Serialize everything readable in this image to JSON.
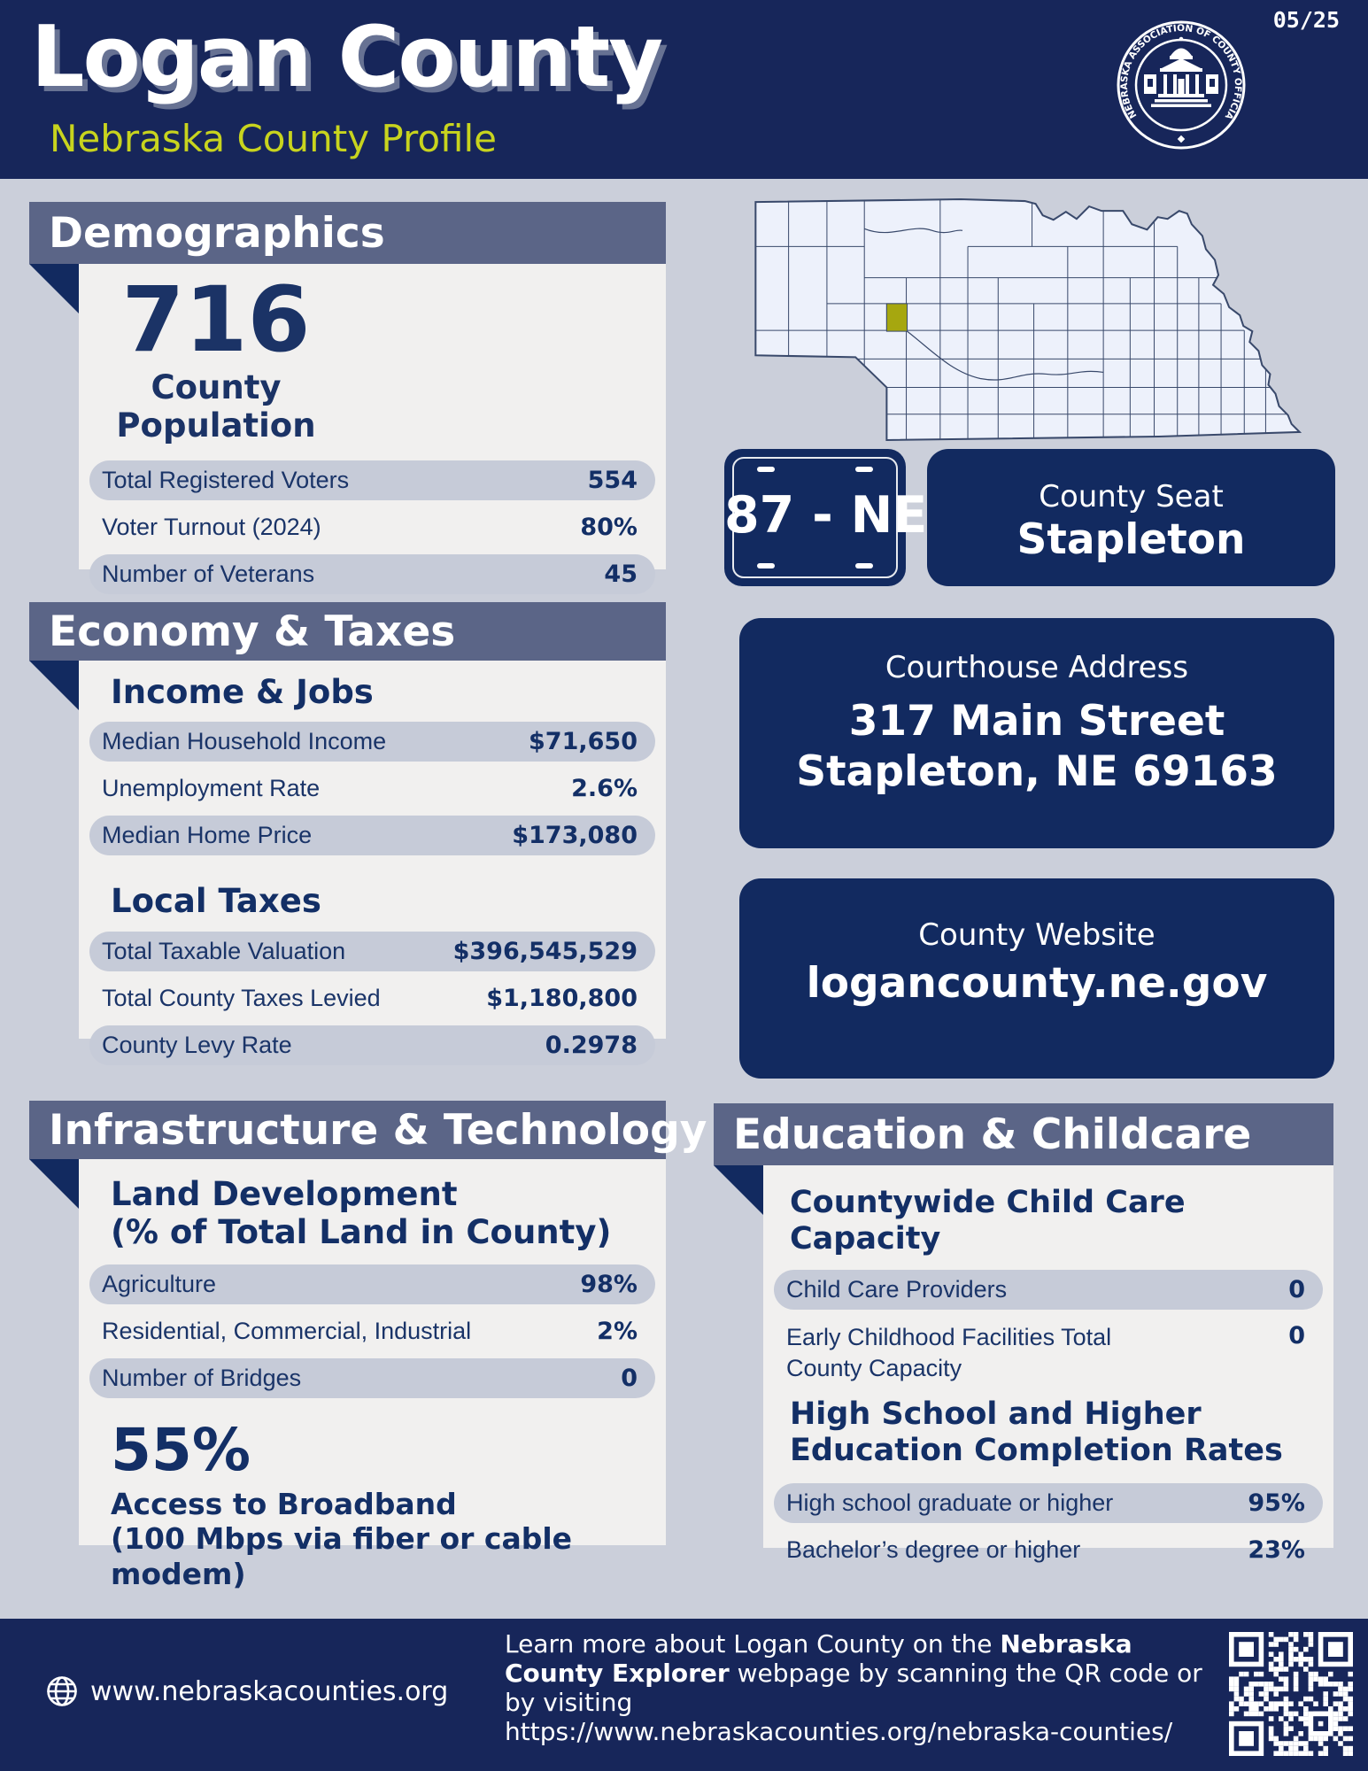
{
  "page": {
    "date": "05/25"
  },
  "header": {
    "title": "Logan County",
    "subtitle": "Nebraska County Profile",
    "seal_text": "NEBRASKA ASSOCIATION OF COUNTY OFFICIALS"
  },
  "map": {
    "highlighted_county": "Logan",
    "highlight_color": "#A6A70F"
  },
  "plate": {
    "number": "87 - NE"
  },
  "county_seat": {
    "label": "County Seat",
    "name": "Stapleton"
  },
  "courthouse": {
    "label": "Courthouse Address",
    "address_line1": "317 Main Street",
    "address_line2": "Stapleton, NE 69163"
  },
  "website": {
    "label": "County Website",
    "url": "logancounty.ne.gov"
  },
  "demographics": {
    "title": "Demographics",
    "population": "716",
    "population_label": "County Population",
    "rows": [
      {
        "label": "Total Registered Voters",
        "value": "554"
      },
      {
        "label": "Voter Turnout (2024)",
        "value": "80%"
      },
      {
        "label": "Number of Veterans",
        "value": "45"
      }
    ]
  },
  "economy": {
    "title": "Economy & Taxes",
    "income_jobs_heading": "Income & Jobs",
    "income_rows": [
      {
        "label": "Median Household Income",
        "value": "$71,650"
      },
      {
        "label": "Unemployment Rate",
        "value": "2.6%"
      },
      {
        "label": "Median Home Price",
        "value": "$173,080"
      }
    ],
    "local_taxes_heading": "Local Taxes",
    "tax_rows": [
      {
        "label": "Total Taxable Valuation",
        "value": "$396,545,529"
      },
      {
        "label": "Total County Taxes Levied",
        "value": "$1,180,800"
      },
      {
        "label": "County Levy Rate",
        "value": "0.2978"
      }
    ]
  },
  "infrastructure": {
    "title": "Infrastructure & Technology",
    "land_heading": "Land Development\n(% of Total Land in County)",
    "rows": [
      {
        "label": "Agriculture",
        "value": "98%"
      },
      {
        "label": "Residential, Commercial, Industrial",
        "value": "2%"
      },
      {
        "label": "Number of Bridges",
        "value": "0"
      }
    ],
    "broadband_stat": "55%",
    "broadband_label": "Access to Broadband\n(100 Mbps via fiber or cable modem)"
  },
  "education": {
    "title": "Education & Childcare",
    "childcare_heading": "Countywide Child Care Capacity",
    "childcare_rows": [
      {
        "label": "Child Care Providers",
        "value": "0"
      },
      {
        "label": "Early Childhood Facilities Total\nCounty Capacity",
        "value": "0"
      }
    ],
    "completion_heading": "High School and Higher\nEducation Completion Rates",
    "completion_rows": [
      {
        "label": "High school graduate or higher",
        "value": "95%"
      },
      {
        "label": "Bachelor’s degree or higher",
        "value": "23%"
      }
    ]
  },
  "footer": {
    "site": "www.nebraskacounties.org",
    "blurb_prefix": "Learn more about Logan County on the ",
    "blurb_bold": "Nebraska County Explorer",
    "blurb_suffix": " webpage by scanning the QR code or by visiting",
    "blurb_url": "https://www.nebraskacounties.org/nebraska-counties/"
  },
  "colors": {
    "banner_navy": "#17265A",
    "card_navy": "#122A60",
    "section_gray": "#5B6587",
    "page_bg": "#CBCFDA",
    "card_bg": "#F1F0EF",
    "pill_bg": "#C6CBD8",
    "text_navy": "#132F66",
    "accent_yellow": "#C8D41E",
    "map_county_fill": "#EDF1FB",
    "map_highlight": "#A6A70F"
  }
}
